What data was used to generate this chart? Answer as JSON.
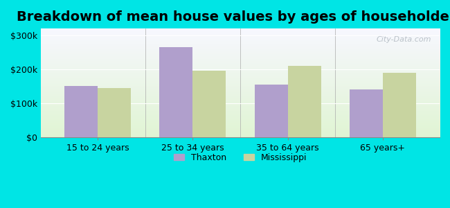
{
  "title": "Breakdown of mean house values by ages of householders",
  "categories": [
    "15 to 24 years",
    "25 to 34 years",
    "35 to 64 years",
    "65 years+"
  ],
  "thaxton_values": [
    150000,
    265000,
    155000,
    140000
  ],
  "mississippi_values": [
    145000,
    195000,
    210000,
    190000
  ],
  "thaxton_color": "#b09fcc",
  "mississippi_color": "#c8d4a0",
  "background_color": "#00e5e5",
  "ylim": [
    0,
    320000
  ],
  "yticks": [
    0,
    100000,
    200000,
    300000
  ],
  "ytick_labels": [
    "$0",
    "$100k",
    "$200k",
    "$300k"
  ],
  "bar_width": 0.35,
  "title_fontsize": 14,
  "legend_labels": [
    "Thaxton",
    "Mississippi"
  ],
  "watermark": "City-Data.com"
}
